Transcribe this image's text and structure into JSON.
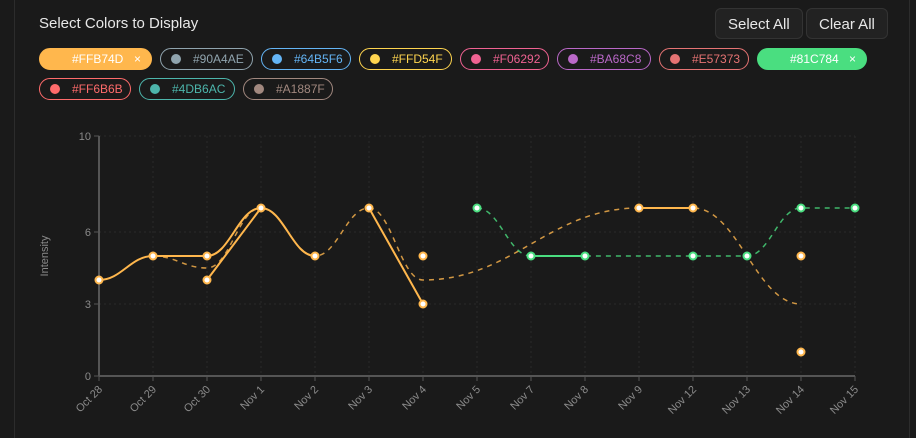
{
  "header": {
    "title": "Select Colors to Display",
    "select_all": "Select All",
    "clear_all": "Clear All"
  },
  "chips": [
    {
      "label": "#FFB74D",
      "color": "#FFB74D",
      "selected": true
    },
    {
      "label": "#90A4AE",
      "color": "#90A4AE",
      "selected": false
    },
    {
      "label": "#64B5F6",
      "color": "#64B5F6",
      "selected": false
    },
    {
      "label": "#FFD54F",
      "color": "#FFD54F",
      "selected": false
    },
    {
      "label": "#F06292",
      "color": "#F06292",
      "selected": false
    },
    {
      "label": "#BA68C8",
      "color": "#BA68C8",
      "selected": false
    },
    {
      "label": "#E57373",
      "color": "#E57373",
      "selected": false
    },
    {
      "label": "#81C784",
      "color": "#81C784",
      "selected": true
    },
    {
      "label": "#FF6B6B",
      "color": "#FF6B6B",
      "selected": false
    },
    {
      "label": "#4DB6AC",
      "color": "#4DB6AC",
      "selected": false
    },
    {
      "label": "#A1887F",
      "color": "#A1887F",
      "selected": false
    }
  ],
  "chip_close": "×",
  "chart_data": {
    "type": "line",
    "ylabel": "Intensity",
    "ylim": [
      0,
      10
    ],
    "yticks": [
      0,
      3,
      6,
      10
    ],
    "categories": [
      "Oct 28",
      "Oct 29",
      "Oct 30",
      "Nov 1",
      "Nov 2",
      "Nov 3",
      "Nov 4",
      "Nov 5",
      "Nov 7",
      "Nov 8",
      "Nov 9",
      "Nov 12",
      "Nov 13",
      "Nov 14",
      "Nov 15"
    ],
    "grid": true,
    "series": [
      {
        "color": "#FFB74D",
        "points": [
          [
            "Oct 28",
            4
          ],
          [
            "Oct 29",
            5
          ],
          [
            "Oct 30",
            5
          ],
          [
            "Oct 30",
            4
          ],
          [
            "Nov 1",
            7
          ],
          [
            "Nov 2",
            5
          ],
          [
            "Nov 3",
            7
          ],
          [
            "Nov 4",
            3
          ],
          [
            "Nov 4",
            5
          ],
          [
            "Nov 9",
            7
          ],
          [
            "Nov 12",
            7
          ],
          [
            "Nov 14",
            5
          ],
          [
            "Nov 14",
            1
          ]
        ],
        "solid_lines": [
          [
            [
              "Oct 28",
              4
            ],
            [
              "Oct 29",
              5
            ],
            [
              "Oct 30",
              5
            ],
            [
              "Nov 1",
              7
            ],
            [
              "Nov 2",
              5
            ]
          ],
          [
            [
              "Oct 30",
              4
            ],
            [
              "Nov 1",
              7
            ]
          ],
          [
            [
              "Nov 3",
              7
            ],
            [
              "Nov 4",
              3
            ]
          ],
          [
            [
              "Nov 9",
              7
            ],
            [
              "Nov 12",
              7
            ]
          ]
        ],
        "trend_line": [
          [
            "Oct 29",
            5
          ],
          [
            "Oct 30",
            4.5
          ],
          [
            "Nov 1",
            7
          ],
          [
            "Nov 2",
            5
          ],
          [
            "Nov 3",
            7
          ],
          [
            "Nov 4",
            4
          ],
          [
            "Nov 9",
            7
          ],
          [
            "Nov 12",
            7
          ],
          [
            "Nov 14",
            3
          ]
        ]
      },
      {
        "color": "#4ADE80",
        "points": [
          [
            "Nov 5",
            7
          ],
          [
            "Nov 7",
            5
          ],
          [
            "Nov 8",
            5
          ],
          [
            "Nov 12",
            5
          ],
          [
            "Nov 13",
            5
          ],
          [
            "Nov 14",
            7
          ],
          [
            "Nov 15",
            7
          ]
        ],
        "solid_lines": [
          [
            [
              "Nov 7",
              5
            ],
            [
              "Nov 8",
              5
            ]
          ]
        ],
        "trend_line": [
          [
            "Nov 5",
            7
          ],
          [
            "Nov 7",
            5
          ],
          [
            "Nov 8",
            5
          ],
          [
            "Nov 12",
            5
          ],
          [
            "Nov 13",
            5
          ],
          [
            "Nov 14",
            7
          ],
          [
            "Nov 15",
            7
          ]
        ]
      }
    ]
  }
}
